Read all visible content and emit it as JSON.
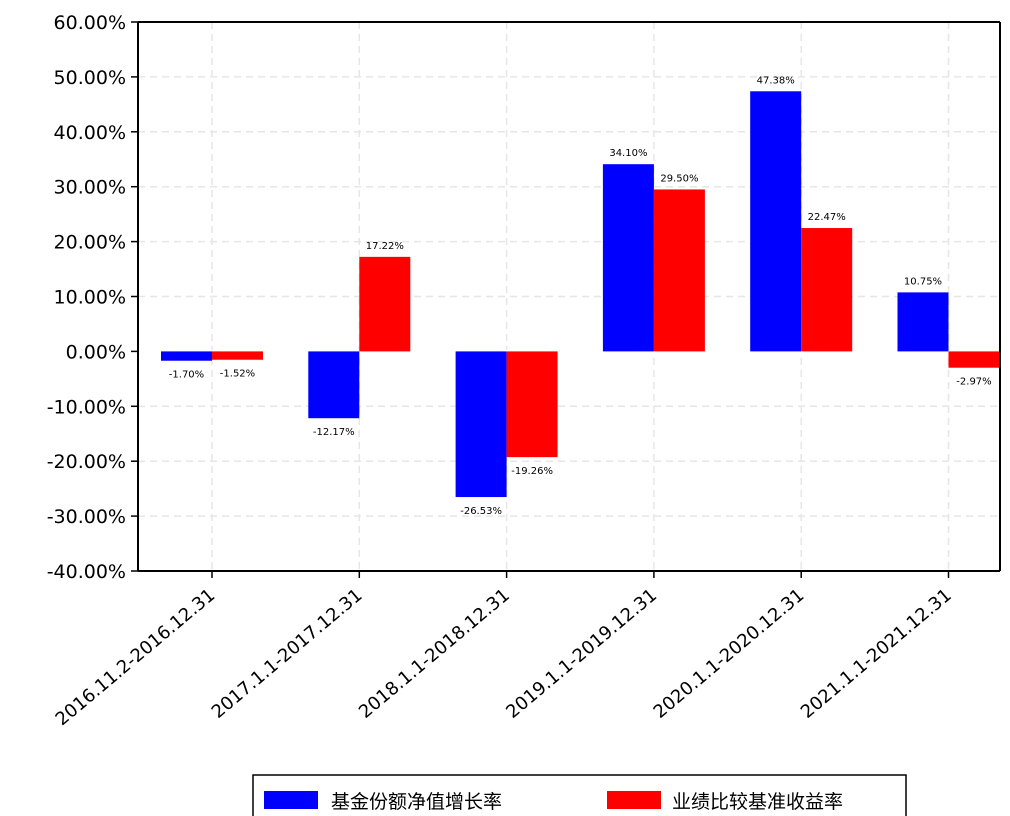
{
  "chart_data": {
    "type": "bar",
    "categories": [
      "2016.11.2-2016.12.31",
      "2017.1.1-2017.12.31",
      "2018.1.1-2018.12.31",
      "2019.1.1-2019.12.31",
      "2020.1.1-2020.12.31",
      "2021.1.1-2021.12.31"
    ],
    "series": [
      {
        "name": "基金份额净值增长率",
        "color": "#0000ff",
        "values": [
          -1.7,
          -12.17,
          -26.53,
          34.1,
          47.38,
          10.75
        ],
        "labels": [
          "-1.70%",
          "-12.17%",
          "-26.53%",
          "34.10%",
          "47.38%",
          "10.75%"
        ]
      },
      {
        "name": "业绩比较基准收益率",
        "color": "#ff0000",
        "values": [
          -1.52,
          17.22,
          -19.26,
          29.5,
          22.47,
          -2.97
        ],
        "labels": [
          "-1.52%",
          "17.22%",
          "-19.26%",
          "29.50%",
          "22.47%",
          "-2.97%"
        ]
      }
    ],
    "title": "",
    "xlabel": "",
    "ylabel": "",
    "ylim": [
      -40,
      60
    ],
    "yticks": [
      60,
      50,
      40,
      30,
      20,
      10,
      0,
      -10,
      -20,
      -30,
      -40
    ],
    "ytick_labels": [
      "60.00%",
      "50.00%",
      "40.00%",
      "30.00%",
      "20.00%",
      "10.00%",
      "0.00%",
      "-10.00%",
      "-20.00%",
      "-30.00%",
      "-40.00%"
    ],
    "grid": true,
    "legend_position": "bottom-center"
  }
}
